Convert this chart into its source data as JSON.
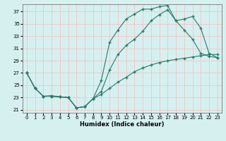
{
  "xlabel": "Humidex (Indice chaleur)",
  "xlim": [
    -0.5,
    23.5
  ],
  "ylim": [
    20.5,
    38.2
  ],
  "xticks": [
    0,
    1,
    2,
    3,
    4,
    5,
    6,
    7,
    8,
    9,
    10,
    11,
    12,
    13,
    14,
    15,
    16,
    17,
    18,
    19,
    20,
    21,
    22,
    23
  ],
  "yticks": [
    21,
    23,
    25,
    27,
    29,
    31,
    33,
    35,
    37
  ],
  "bg_color": "#d6f0f0",
  "grid_color": "#f0c8c8",
  "line_color": "#2a7a6a",
  "line1_x": [
    0,
    1,
    2,
    3,
    4,
    5,
    6,
    7,
    8,
    9,
    10,
    11,
    12,
    13,
    14,
    15,
    16,
    17,
    18,
    19,
    20,
    21,
    22,
    23
  ],
  "line1_y": [
    27,
    24.5,
    23.2,
    23.3,
    23.1,
    23.0,
    21.3,
    21.5,
    22.8,
    25.8,
    32.0,
    34.0,
    35.8,
    36.6,
    37.4,
    37.4,
    37.8,
    38.0,
    35.5,
    34.0,
    32.5,
    30.2,
    29.7,
    29.5
  ],
  "line2_x": [
    0,
    1,
    2,
    3,
    4,
    5,
    6,
    7,
    8,
    9,
    10,
    11,
    12,
    13,
    14,
    15,
    16,
    17,
    18,
    19,
    20,
    21,
    22,
    23
  ],
  "line2_y": [
    27,
    24.5,
    23.2,
    23.2,
    23.1,
    23.0,
    21.3,
    21.5,
    22.8,
    24.0,
    27.5,
    30.0,
    31.5,
    32.5,
    33.8,
    35.5,
    36.5,
    37.3,
    35.5,
    35.8,
    36.2,
    34.3,
    30.2,
    29.5
  ],
  "line3_x": [
    0,
    1,
    2,
    3,
    4,
    5,
    6,
    7,
    8,
    9,
    10,
    11,
    12,
    13,
    14,
    15,
    16,
    17,
    18,
    19,
    20,
    21,
    22,
    23
  ],
  "line3_y": [
    27,
    24.5,
    23.2,
    23.2,
    23.1,
    23.0,
    21.3,
    21.5,
    22.8,
    23.5,
    24.5,
    25.5,
    26.3,
    27.2,
    27.8,
    28.3,
    28.7,
    29.0,
    29.2,
    29.4,
    29.6,
    29.8,
    30.0,
    30.0
  ]
}
